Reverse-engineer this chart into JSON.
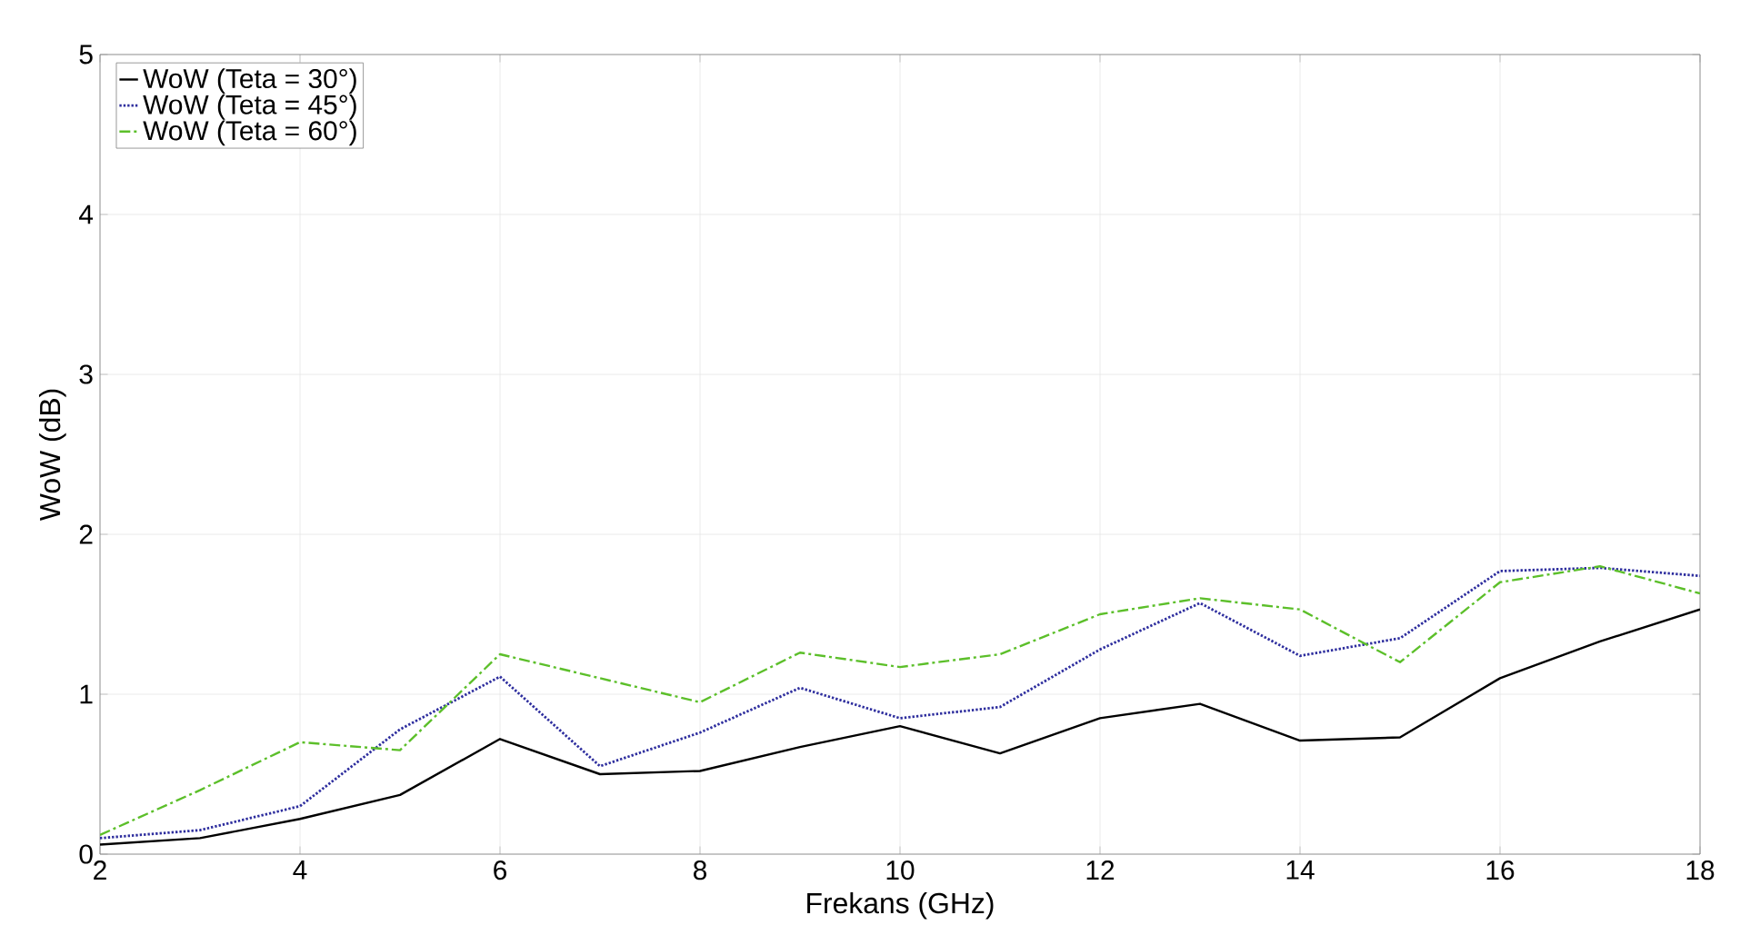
{
  "chart_data": {
    "type": "line",
    "xlabel": "Frekans (GHz)",
    "ylabel": "WoW (dB)",
    "x": [
      2,
      3,
      4,
      5,
      6,
      7,
      8,
      9,
      10,
      11,
      12,
      13,
      14,
      15,
      16,
      17,
      18
    ],
    "series": [
      {
        "name": "WoW (Teta = 30°)",
        "color": "#000000",
        "line_style": "solid",
        "values": [
          0.06,
          0.1,
          0.22,
          0.37,
          0.72,
          0.5,
          0.52,
          0.67,
          0.8,
          0.63,
          0.85,
          0.94,
          0.71,
          0.73,
          1.1,
          1.33,
          1.53
        ]
      },
      {
        "name": "WoW (Teta = 45°)",
        "color": "#2e2e9e",
        "line_style": "dotted",
        "values": [
          0.1,
          0.15,
          0.3,
          0.78,
          1.11,
          0.55,
          0.76,
          1.04,
          0.85,
          0.92,
          1.28,
          1.57,
          1.24,
          1.35,
          1.77,
          1.79,
          1.74
        ]
      },
      {
        "name": "WoW (Teta = 60°)",
        "color": "#5cbf2a",
        "line_style": "dashdot",
        "values": [
          0.12,
          0.4,
          0.7,
          0.65,
          1.25,
          1.1,
          0.95,
          1.26,
          1.17,
          1.25,
          1.5,
          1.6,
          1.53,
          1.2,
          1.7,
          1.8,
          1.63
        ]
      }
    ],
    "xlim": [
      2,
      18
    ],
    "xticks": [
      2,
      4,
      6,
      8,
      10,
      12,
      14,
      16,
      18
    ],
    "ylim": [
      0,
      5
    ],
    "yticks": [
      0,
      1,
      2,
      3,
      4,
      5
    ],
    "grid": true,
    "legend": "top left",
    "marker": "none"
  }
}
